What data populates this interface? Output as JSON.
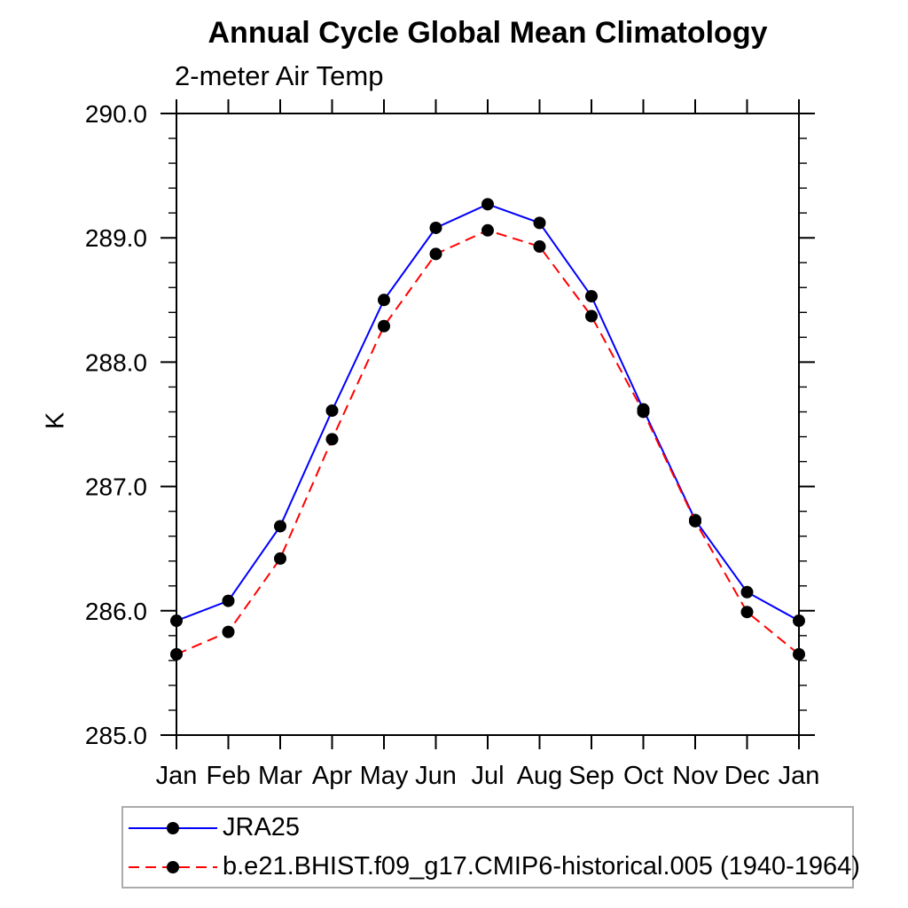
{
  "chart_data": {
    "type": "line",
    "title": "Annual Cycle Global Mean Climatology",
    "subtitle": "2-meter Air Temp",
    "ylabel": "K",
    "categories": [
      "Jan",
      "Feb",
      "Mar",
      "Apr",
      "May",
      "Jun",
      "Jul",
      "Aug",
      "Sep",
      "Oct",
      "Nov",
      "Dec",
      "Jan"
    ],
    "ylim": [
      285.0,
      290.0
    ],
    "y_major_step": 1.0,
    "y_minor_step": 0.2,
    "y_tick_labels": [
      "285.0",
      "286.0",
      "287.0",
      "288.0",
      "289.0",
      "290.0"
    ],
    "grid": false,
    "axis_color": "#000000",
    "marker_shape": "filled-circle",
    "legend_position": "below-plot-left",
    "legend_border_color": "#ababab",
    "series": [
      {
        "name": "JRA25",
        "line_color": "#0000ff",
        "line_style": "solid",
        "marker_color": "#000000",
        "values": [
          285.92,
          286.08,
          286.68,
          287.61,
          288.5,
          289.08,
          289.27,
          289.12,
          288.53,
          287.62,
          286.73,
          286.15,
          285.92
        ]
      },
      {
        "name": "b.e21.BHIST.f09_g17.CMIP6-historical.005 (1940-1964)",
        "line_color": "#ff0000",
        "line_style": "dashed",
        "marker_color": "#000000",
        "values": [
          285.65,
          285.83,
          286.42,
          287.38,
          288.29,
          288.87,
          289.06,
          288.93,
          288.37,
          287.6,
          286.72,
          285.99,
          285.65
        ]
      }
    ]
  }
}
